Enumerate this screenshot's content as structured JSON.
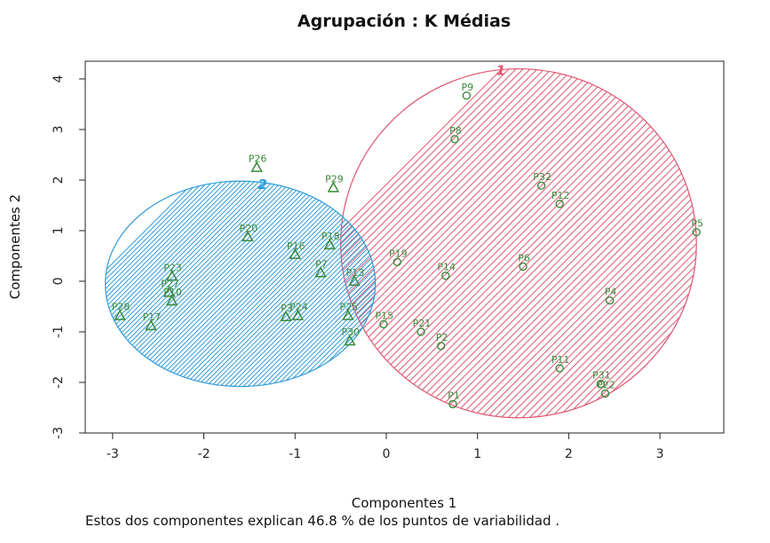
{
  "chart_data": {
    "type": "scatter",
    "title": "Agrupación : K Médias",
    "xlabel": "Componentes 1",
    "ylabel": "Componentes 2",
    "xlim": [
      -3.3,
      3.7
    ],
    "ylim": [
      -3.0,
      4.35
    ],
    "xticks": [
      "-3",
      "-2",
      "-1",
      "0",
      "1",
      "2",
      "3"
    ],
    "yticks": [
      "-3",
      "-2",
      "-1",
      "0",
      "1",
      "2",
      "3",
      "4"
    ],
    "grid": false,
    "clusters": [
      {
        "label": "1",
        "color": "#e05570",
        "marker": "circle",
        "ellipse": {
          "cx": 1.45,
          "cy": 0.75,
          "rx": 1.95,
          "ry": 3.45
        },
        "points": [
          {
            "name": "P1",
            "x": 0.73,
            "y": -2.43
          },
          {
            "name": "P2",
            "x": 0.6,
            "y": -1.28
          },
          {
            "name": "P4",
            "x": 2.45,
            "y": -0.38
          },
          {
            "name": "P5",
            "x": 3.4,
            "y": 0.97
          },
          {
            "name": "P6",
            "x": 1.5,
            "y": 0.29
          },
          {
            "name": "P8",
            "x": 0.75,
            "y": 2.81
          },
          {
            "name": "P9",
            "x": 0.88,
            "y": 3.67
          },
          {
            "name": "P11",
            "x": 1.9,
            "y": -1.72
          },
          {
            "name": "P12",
            "x": 1.9,
            "y": 1.53
          },
          {
            "name": "P14",
            "x": 0.65,
            "y": 0.11
          },
          {
            "name": "P15",
            "x": -0.03,
            "y": -0.85
          },
          {
            "name": "P19",
            "x": 0.12,
            "y": 0.38
          },
          {
            "name": "P21",
            "x": 0.38,
            "y": -1.0
          },
          {
            "name": "P22",
            "x": 2.4,
            "y": -2.22
          },
          {
            "name": "P31",
            "x": 2.35,
            "y": -2.03
          },
          {
            "name": "P32",
            "x": 1.7,
            "y": 1.89
          }
        ]
      },
      {
        "label": "2",
        "color": "#2e9bd9",
        "marker": "triangle",
        "ellipse": {
          "cx": -1.6,
          "cy": -0.05,
          "rx": 1.48,
          "ry": 2.03
        },
        "points": [
          {
            "name": "P3",
            "x": -1.1,
            "y": -0.7
          },
          {
            "name": "P7",
            "x": -0.72,
            "y": 0.17
          },
          {
            "name": "P10",
            "x": -2.35,
            "y": -0.39
          },
          {
            "name": "P13",
            "x": -0.35,
            "y": 0.0
          },
          {
            "name": "P16",
            "x": -1.0,
            "y": 0.53
          },
          {
            "name": "P17",
            "x": -2.58,
            "y": -0.88
          },
          {
            "name": "P18",
            "x": -0.62,
            "y": 0.72
          },
          {
            "name": "P20",
            "x": -1.52,
            "y": 0.88
          },
          {
            "name": "P23",
            "x": -2.35,
            "y": 0.1
          },
          {
            "name": "P24",
            "x": -0.97,
            "y": -0.68
          },
          {
            "name": "P25",
            "x": -0.42,
            "y": -0.68
          },
          {
            "name": "P26",
            "x": -1.42,
            "y": 2.25
          },
          {
            "name": "P27",
            "x": -2.38,
            "y": -0.22
          },
          {
            "name": "P28",
            "x": -2.92,
            "y": -0.68
          },
          {
            "name": "P29",
            "x": -0.58,
            "y": 1.85
          },
          {
            "name": "P30",
            "x": -0.4,
            "y": -1.18
          }
        ]
      }
    ]
  },
  "footer": "Estos dos componentes explican 46.8 % de los puntos de variabilidad ."
}
